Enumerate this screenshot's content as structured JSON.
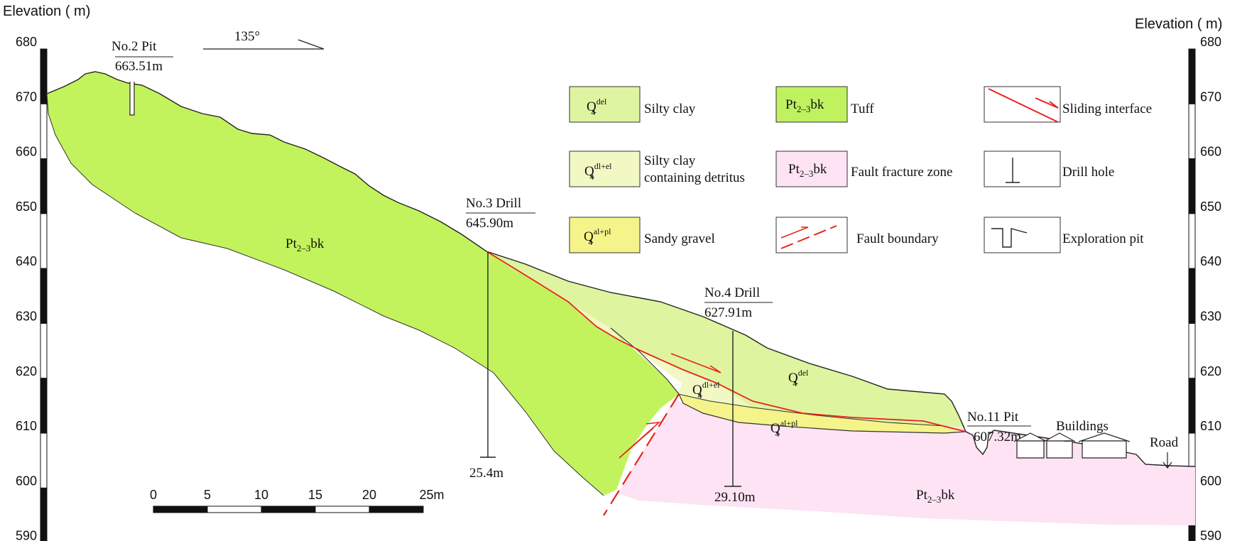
{
  "axis": {
    "left_title": "Elevation ( m)",
    "right_title": "Elevation ( m)",
    "ticks": [
      "680",
      "670",
      "660",
      "650",
      "640",
      "630",
      "620",
      "610",
      "600",
      "590"
    ]
  },
  "direction": "135°",
  "pits_and_drills": {
    "pit2": {
      "name": "No.2  Pit",
      "elev": "663.51m"
    },
    "drill3": {
      "name": "No.3  Drill",
      "elev": "645.90m",
      "depth": "25.4m"
    },
    "drill4": {
      "name": "No.4  Drill",
      "elev": "627.91m",
      "depth": "29.10m"
    },
    "pit11": {
      "name": "No.11  Pit",
      "elev": "607.32m"
    }
  },
  "features": {
    "buildings": "Buildings",
    "road": "Road"
  },
  "strata_labels": {
    "tuff_main": {
      "base": "Pt",
      "sub": "2–3",
      "suffix": "bk"
    },
    "fault_zone": {
      "base": "Pt",
      "sub": "2–3",
      "suffix": "bk"
    },
    "q4_del": {
      "base": "Q",
      "sub": "4",
      "sup": "del"
    },
    "q4_dlel": {
      "base": "Q",
      "sub": "4",
      "sup": "dl+el"
    },
    "q4_alpl": {
      "base": "Q",
      "sub": "4",
      "sup": "al+pl"
    }
  },
  "legend": {
    "silty_clay": {
      "symbol_base": "Q",
      "symbol_sub": "4",
      "symbol_sup": "del",
      "label": "Silty  clay",
      "color": "#dff4a0"
    },
    "tuff": {
      "symbol_base": "Pt",
      "symbol_sub": "2–3",
      "symbol_suffix": "bk",
      "label": "Tuff",
      "color": "#bff25e"
    },
    "sliding": {
      "label": "Sliding interface",
      "color": "#e8231e"
    },
    "silty_clay_detritus": {
      "symbol_base": "Q",
      "symbol_sub": "4",
      "symbol_sup": "dl+el",
      "label_line1": "Silty  clay",
      "label_line2": "containing  detritus",
      "color": "#f1f8c4"
    },
    "fault_fracture": {
      "symbol_base": "Pt",
      "symbol_sub": "2–3",
      "symbol_suffix": "bk",
      "label": "Fault  fracture  zone",
      "color": "#fde3f3"
    },
    "drill_hole": {
      "label": "Drill  hole"
    },
    "sandy_gravel": {
      "symbol_base": "Q",
      "symbol_sub": "4",
      "symbol_sup": "al+pl",
      "label": "Sandy  gravel",
      "color": "#f4f48a"
    },
    "fault_boundary": {
      "label": "Fault  boundary",
      "color": "#e8231e"
    },
    "exploration_pit": {
      "label": "Exploration  pit"
    }
  },
  "scale_bar": {
    "labels": [
      "0",
      "5",
      "10",
      "15",
      "20",
      "25m"
    ]
  }
}
